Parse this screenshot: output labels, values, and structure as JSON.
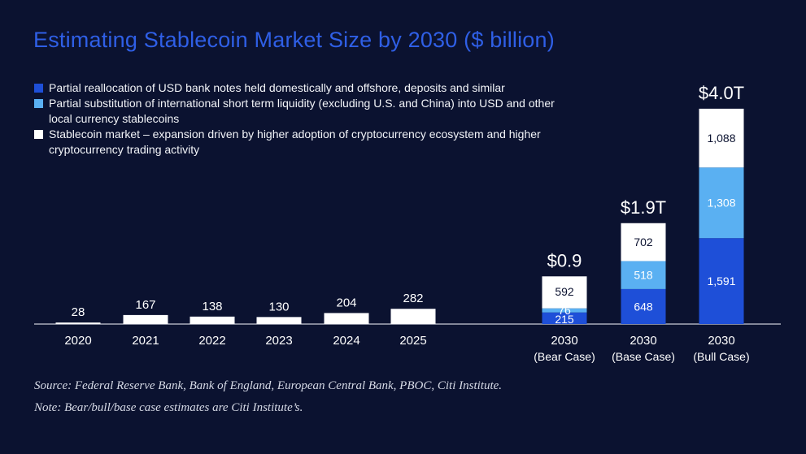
{
  "title": "Estimating Stablecoin Market Size by 2030 ($ billion)",
  "legend": [
    {
      "label": "Partial reallocation of USD bank notes held domestically and offshore, deposits and similar",
      "color": "#1e4fd8"
    },
    {
      "label": "Partial substitution of international short term liquidity (excluding U.S. and China) into USD and other local currency stablecoins",
      "color": "#5ab0f2"
    },
    {
      "label": "Stablecoin market – expansion driven by higher adoption of cryptocurrency ecosystem and higher cryptocurrency trading activity",
      "color": "#ffffff"
    }
  ],
  "chart_data": {
    "type": "bar",
    "stacked": true,
    "historical": {
      "categories": [
        "2020",
        "2021",
        "2022",
        "2023",
        "2024",
        "2025"
      ],
      "values": [
        28,
        167,
        138,
        130,
        204,
        282
      ],
      "labels": [
        "28",
        "167",
        "138",
        "130",
        "204",
        "282"
      ]
    },
    "projections": {
      "categories": [
        {
          "line1": "2030",
          "line2": "(Bear Case)"
        },
        {
          "line1": "2030",
          "line2": "(Base Case)"
        },
        {
          "line1": "2030",
          "line2": "(Bull Case)"
        }
      ],
      "totals": [
        "$0.9",
        "$1.9T",
        "$4.0T"
      ],
      "series": [
        {
          "values": [
            215,
            648,
            1591
          ],
          "labels": [
            "215",
            "648",
            "1,591"
          ],
          "color": "#1e4fd8"
        },
        {
          "values": [
            76,
            518,
            1308
          ],
          "labels": [
            "76",
            "518",
            "1,308"
          ],
          "color": "#5ab0f2"
        },
        {
          "values": [
            592,
            702,
            1088
          ],
          "labels": [
            "592",
            "702",
            "1,088"
          ],
          "color": "#ffffff"
        }
      ]
    }
  },
  "source": "Source: Federal Reserve Bank, Bank of England, European Central Bank, PBOC, Citi Institute.",
  "note": "Note: Bear/bull/base case estimates are Citi Institute’s."
}
